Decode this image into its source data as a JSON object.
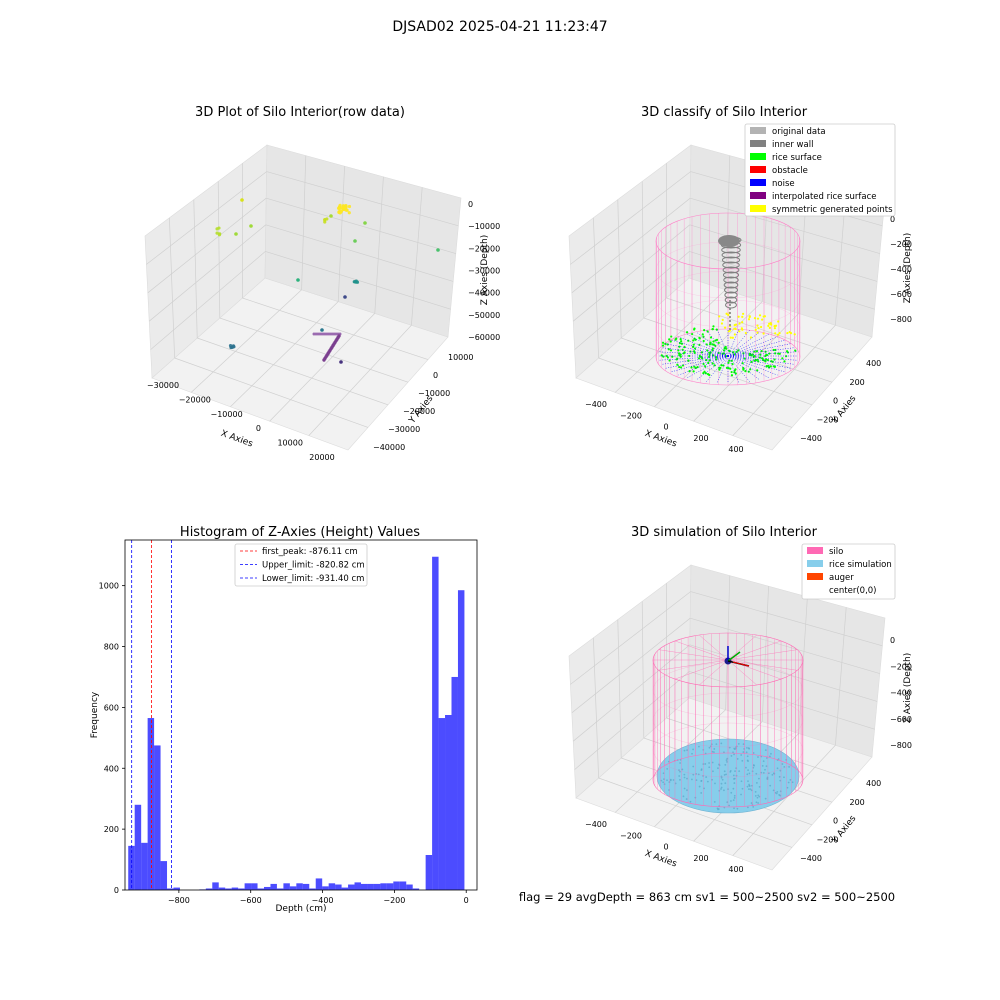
{
  "figure": {
    "suptitle": "DJSAD02 2025-04-21 11:23:47",
    "footer": "flag = 29  avgDepth = 863 cm  sv1 = 500~2500  sv2 = 500~2500"
  },
  "chart_data": [
    {
      "type": "scatter",
      "title": "3D Plot of Silo Interior(row data)",
      "xlabel": "X Axies",
      "ylabel": "Y Axies",
      "zlabel": "Z Axies (Depth)",
      "x_ticks": [
        "−30000",
        "−20000",
        "−10000",
        "0",
        "10000",
        "20000"
      ],
      "y_ticks": [
        "10000",
        "0",
        "−10000",
        "−20000",
        "−30000",
        "−40000"
      ],
      "z_ticks": [
        "0",
        "−10000",
        "−20000",
        "−30000",
        "−40000",
        "−50000",
        "−60000"
      ],
      "colormap": "viridis (by depth)",
      "grid": true
    },
    {
      "type": "scatter",
      "title": "3D classify of Silo Interior",
      "xlabel": "X Axies",
      "ylabel": "Y Axies",
      "zlabel": "Z Axies (Depth)",
      "x_ticks": [
        "−400",
        "−200",
        "0",
        "200",
        "400"
      ],
      "y_ticks": [
        "400",
        "200",
        "0",
        "−200",
        "−400"
      ],
      "z_ticks": [
        "0",
        "−200",
        "−400",
        "−600",
        "−800"
      ],
      "legend_position": "top-right",
      "legend": [
        {
          "label": "original data",
          "color": "#b3b3b3"
        },
        {
          "label": "inner wall",
          "color": "#808080"
        },
        {
          "label": "rice surface",
          "color": "#00ff00"
        },
        {
          "label": "obstacle",
          "color": "#ff0000"
        },
        {
          "label": "noise",
          "color": "#0000ff"
        },
        {
          "label": "interpolated rice surface",
          "color": "#800080"
        },
        {
          "label": "symmetric generated points",
          "color": "#ffff00"
        }
      ],
      "grid": true
    },
    {
      "type": "bar",
      "title": "Histogram of Z-Axies (Height) Values",
      "xlabel": "Depth (cm)",
      "ylabel": "Frequency",
      "xlim": [
        -950,
        30
      ],
      "ylim": [
        0,
        1150
      ],
      "x_ticks": [
        -800,
        -600,
        -400,
        -200,
        0
      ],
      "x_tick_labels": [
        "−800",
        "−600",
        "−400",
        "−200",
        "0"
      ],
      "y_ticks": [
        0,
        200,
        400,
        600,
        800,
        1000
      ],
      "bar_color": "#0000ff",
      "bar_opacity": 0.7,
      "bin_width": 18,
      "bins": [
        {
          "x": -941,
          "v": 145
        },
        {
          "x": -923,
          "v": 280
        },
        {
          "x": -905,
          "v": 155
        },
        {
          "x": -887,
          "v": 565
        },
        {
          "x": -869,
          "v": 475
        },
        {
          "x": -851,
          "v": 95
        },
        {
          "x": -833,
          "v": 5
        },
        {
          "x": -815,
          "v": 8
        },
        {
          "x": -743,
          "v": 2
        },
        {
          "x": -725,
          "v": 5
        },
        {
          "x": -707,
          "v": 25
        },
        {
          "x": -689,
          "v": 8
        },
        {
          "x": -671,
          "v": 5
        },
        {
          "x": -653,
          "v": 8
        },
        {
          "x": -635,
          "v": 5
        },
        {
          "x": -617,
          "v": 22
        },
        {
          "x": -599,
          "v": 22
        },
        {
          "x": -581,
          "v": 5
        },
        {
          "x": -563,
          "v": 10
        },
        {
          "x": -545,
          "v": 20
        },
        {
          "x": -527,
          "v": 5
        },
        {
          "x": -509,
          "v": 22
        },
        {
          "x": -491,
          "v": 12
        },
        {
          "x": -473,
          "v": 22
        },
        {
          "x": -455,
          "v": 20
        },
        {
          "x": -437,
          "v": 5
        },
        {
          "x": -419,
          "v": 38
        },
        {
          "x": -401,
          "v": 12
        },
        {
          "x": -383,
          "v": 22
        },
        {
          "x": -365,
          "v": 18
        },
        {
          "x": -347,
          "v": 8
        },
        {
          "x": -329,
          "v": 18
        },
        {
          "x": -311,
          "v": 25
        },
        {
          "x": -293,
          "v": 20
        },
        {
          "x": -275,
          "v": 20
        },
        {
          "x": -257,
          "v": 20
        },
        {
          "x": -239,
          "v": 22
        },
        {
          "x": -221,
          "v": 22
        },
        {
          "x": -203,
          "v": 28
        },
        {
          "x": -185,
          "v": 28
        },
        {
          "x": -167,
          "v": 18
        },
        {
          "x": -149,
          "v": 5
        },
        {
          "x": -113,
          "v": 115
        },
        {
          "x": -95,
          "v": 1095
        },
        {
          "x": -77,
          "v": 565
        },
        {
          "x": -59,
          "v": 575
        },
        {
          "x": -41,
          "v": 700
        },
        {
          "x": -23,
          "v": 985
        }
      ],
      "vlines": [
        {
          "x": -876.11,
          "color": "#ff0000",
          "label": "first_peak: -876.11 cm"
        },
        {
          "x": -820.82,
          "color": "#0000ff",
          "label": "Upper_limit: -820.82 cm"
        },
        {
          "x": -931.4,
          "color": "#0000ff",
          "label": "Lower_limit: -931.40 cm"
        }
      ],
      "legend_position": "top-center"
    },
    {
      "type": "scatter",
      "title": "3D simulation of Silo Interior",
      "xlabel": "X Axies",
      "ylabel": "Y Axies",
      "zlabel": "Z Axies (Depth)",
      "x_ticks": [
        "−400",
        "−200",
        "0",
        "200",
        "400"
      ],
      "y_ticks": [
        "400",
        "200",
        "0",
        "−200",
        "−400"
      ],
      "z_ticks": [
        "0",
        "−200",
        "−400",
        "−600",
        "−800"
      ],
      "legend_position": "top-right",
      "legend": [
        {
          "label": "silo",
          "color": "#ff69b4"
        },
        {
          "label": "rice simulation",
          "color": "#87ceeb"
        },
        {
          "label": "auger",
          "color": "#ff4500"
        },
        {
          "label": "center(0,0)",
          "color": "none"
        }
      ],
      "grid": true
    }
  ]
}
